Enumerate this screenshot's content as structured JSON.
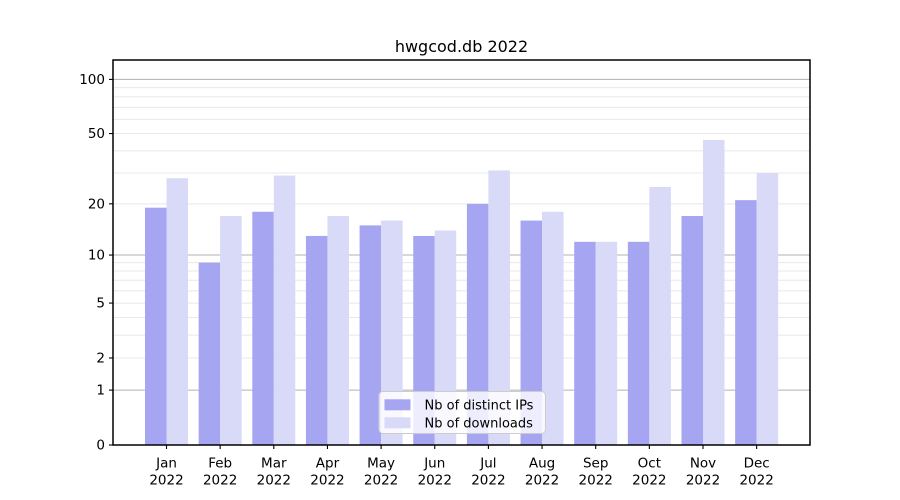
{
  "title": "hwgcod.db 2022",
  "chart_data": {
    "type": "bar",
    "title": "hwgcod.db 2022",
    "categories": [
      "Jan 2022",
      "Feb 2022",
      "Mar 2022",
      "Apr 2022",
      "May 2022",
      "Jun 2022",
      "Jul 2022",
      "Aug 2022",
      "Sep 2022",
      "Oct 2022",
      "Nov 2022",
      "Dec 2022"
    ],
    "series": [
      {
        "name": "Nb of distinct IPs",
        "color": "#a5a5f2",
        "values": [
          19,
          9,
          18,
          13,
          15,
          13,
          20,
          16,
          12,
          12,
          17,
          21
        ]
      },
      {
        "name": "Nb of downloads",
        "color": "#d9d9f8",
        "values": [
          28,
          17,
          29,
          17,
          16,
          14,
          31,
          18,
          12,
          25,
          46,
          30
        ]
      }
    ],
    "xlabel": "",
    "ylabel": "",
    "yscale": "log1p",
    "ylim": [
      0,
      127
    ],
    "y_ticks": [
      {
        "value": 0,
        "label": "0"
      },
      {
        "value": 1,
        "label": "1"
      },
      {
        "value": 2,
        "label": "2"
      },
      {
        "value": 5,
        "label": "5"
      },
      {
        "value": 10,
        "label": "10"
      },
      {
        "value": 20,
        "label": "20"
      },
      {
        "value": 50,
        "label": "50"
      },
      {
        "value": 100,
        "label": "100"
      }
    ],
    "y_minor_gridlines": [
      3,
      4,
      6,
      7,
      8,
      9,
      30,
      40,
      60,
      70,
      80,
      90
    ],
    "grid": true,
    "legend": {
      "position": "lower center",
      "items": [
        "Nb of distinct IPs",
        "Nb of downloads"
      ]
    },
    "colors": {
      "major_grid": "#b0b0b0",
      "minor_grid": "#e8e8e8",
      "spine": "#000000",
      "legend_border": "#cccccc",
      "legend_bg": "#ffffff"
    }
  }
}
